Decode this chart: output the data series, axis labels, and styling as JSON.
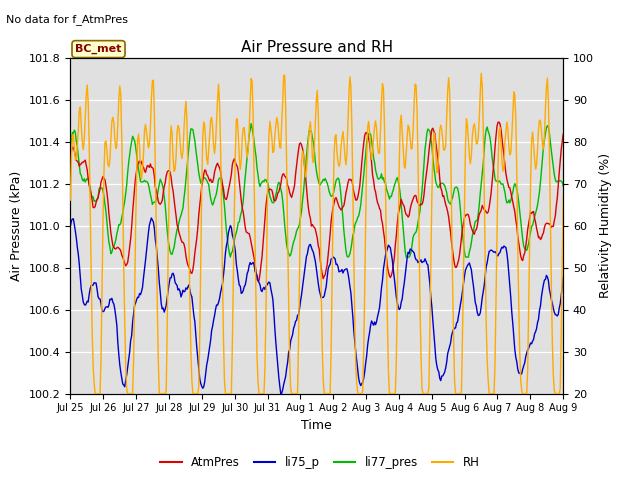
{
  "title": "Air Pressure and RH",
  "subtitle": "No data for f_AtmPres",
  "xlabel": "Time",
  "ylabel_left": "Air Pressure (kPa)",
  "ylabel_right": "Relativity Humidity (%)",
  "annotation": "BC_met",
  "ylim_left": [
    100.2,
    101.8
  ],
  "ylim_right": [
    20,
    100
  ],
  "yticks_left": [
    100.2,
    100.4,
    100.6,
    100.8,
    101.0,
    101.2,
    101.4,
    101.6,
    101.8
  ],
  "yticks_right": [
    20,
    30,
    40,
    50,
    60,
    70,
    80,
    90,
    100
  ],
  "xtick_labels": [
    "Jul 25",
    "Jul 26",
    "Jul 27",
    "Jul 28",
    "Jul 29",
    "Jul 30",
    "Jul 31",
    "Aug 1",
    "Aug 2",
    "Aug 3",
    "Aug 4",
    "Aug 5",
    "Aug 6",
    "Aug 7",
    "Aug 8",
    "Aug 9"
  ],
  "colors": {
    "AtmPres": "#dd0000",
    "li75_p": "#0000cc",
    "li77_pres": "#00bb00",
    "RH": "#ffaa00"
  },
  "bg_color": "#e0e0e0",
  "n_points": 500,
  "seed": 42
}
